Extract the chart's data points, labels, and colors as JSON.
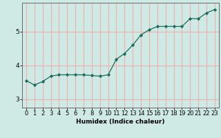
{
  "x": [
    0,
    1,
    2,
    3,
    4,
    5,
    6,
    7,
    8,
    9,
    10,
    11,
    12,
    13,
    14,
    15,
    16,
    17,
    18,
    19,
    20,
    21,
    22,
    23
  ],
  "y": [
    3.55,
    3.42,
    3.52,
    3.68,
    3.72,
    3.72,
    3.72,
    3.72,
    3.7,
    3.68,
    3.72,
    4.18,
    4.35,
    4.6,
    4.9,
    5.05,
    5.15,
    5.15,
    5.15,
    5.15,
    5.38,
    5.38,
    5.55,
    5.65
  ],
  "xlabel": "Humidex (Indice chaleur)",
  "background_color": "#cfe9e5",
  "grid_color": "#f0b0b0",
  "line_color": "#1a6b5a",
  "marker_color": "#1a6b5a",
  "xlim": [
    -0.5,
    23.5
  ],
  "ylim": [
    2.75,
    5.85
  ],
  "yticks": [
    3,
    4,
    5
  ],
  "xticks": [
    0,
    1,
    2,
    3,
    4,
    5,
    6,
    7,
    8,
    9,
    10,
    11,
    12,
    13,
    14,
    15,
    16,
    17,
    18,
    19,
    20,
    21,
    22,
    23
  ],
  "xlabel_fontsize": 6.5,
  "tick_fontsize": 6.0
}
